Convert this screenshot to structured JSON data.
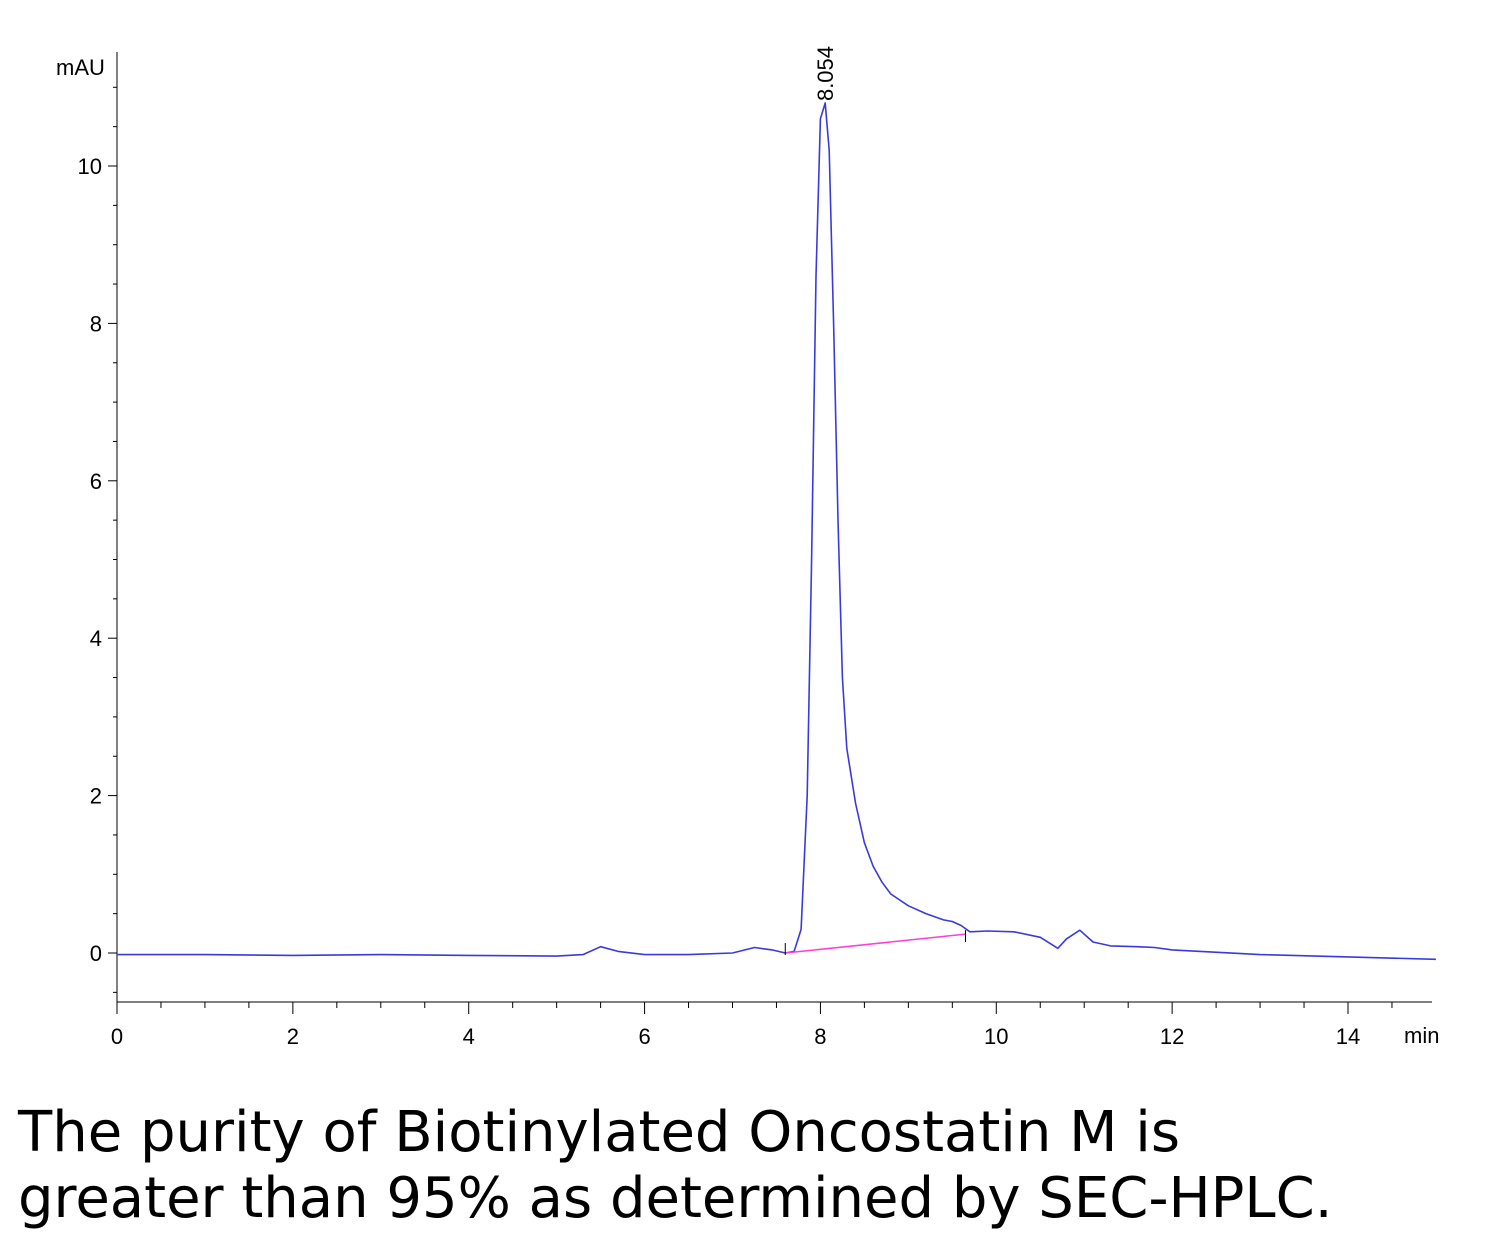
{
  "chart_data": {
    "type": "line",
    "ylabel": "mAU",
    "xlabel": "min",
    "xlim": [
      0,
      15
    ],
    "ylim": [
      -0.6,
      11.5
    ],
    "x_ticks": [
      0,
      2,
      4,
      6,
      8,
      10,
      12,
      14
    ],
    "y_ticks": [
      0,
      2,
      4,
      6,
      8,
      10
    ],
    "grid": false,
    "peak_label": "8.054",
    "series": [
      {
        "color": "#3a3adc",
        "x": [
          0,
          1,
          2,
          3,
          4,
          5,
          5.3,
          5.5,
          5.7,
          6.0,
          6.5,
          7.0,
          7.25,
          7.45,
          7.6,
          7.7,
          7.78,
          7.85,
          7.9,
          7.95,
          8.0,
          8.054,
          8.1,
          8.15,
          8.2,
          8.25,
          8.3,
          8.4,
          8.5,
          8.6,
          8.7,
          8.8,
          9.0,
          9.2,
          9.4,
          9.5,
          9.6,
          9.7,
          9.9,
          10.2,
          10.5,
          10.7,
          10.8,
          10.95,
          11.1,
          11.3,
          11.6,
          11.8,
          12.0,
          13.0,
          14.0,
          15.0
        ],
        "y": [
          -0.02,
          -0.02,
          -0.03,
          -0.02,
          -0.03,
          -0.04,
          -0.02,
          0.08,
          0.02,
          -0.02,
          -0.02,
          0.0,
          0.07,
          0.04,
          0.0,
          0.02,
          0.3,
          2.0,
          5.0,
          8.6,
          10.6,
          10.8,
          10.2,
          8.0,
          5.5,
          3.5,
          2.6,
          1.9,
          1.4,
          1.1,
          0.9,
          0.75,
          0.6,
          0.5,
          0.42,
          0.4,
          0.35,
          0.27,
          0.28,
          0.27,
          0.2,
          0.06,
          0.18,
          0.29,
          0.14,
          0.09,
          0.08,
          0.07,
          0.04,
          -0.02,
          -0.05,
          -0.08
        ]
      }
    ],
    "baseline": {
      "color": "#ff3fd0",
      "x": [
        7.6,
        9.65
      ],
      "y": [
        0.0,
        0.24
      ]
    }
  },
  "caption": {
    "line1": "The purity of Biotinylated Oncostatin M is",
    "line2": "greater than 95% as determined by SEC-HPLC."
  }
}
